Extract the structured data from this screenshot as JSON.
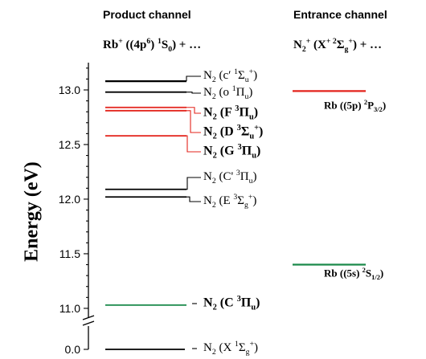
{
  "headers": {
    "product": "Product channel",
    "entrance": "Entrance channel",
    "product_sub": {
      "a": "Rb",
      "sup1": "+",
      "b": " ((4p",
      "sup2": "6",
      "c": ") ",
      "sup3": "1",
      "d": "S",
      "sub1": "0",
      "e": ") + …"
    },
    "entrance_sub": {
      "a": "N",
      "sub1": "2",
      "sup1": "+",
      "b": " (X",
      "sup2": "+ 2",
      "c": "Σ",
      "sub2": "g",
      "sup3": "+",
      "d": ") + …"
    }
  },
  "y_axis": {
    "label": "Energy (eV)",
    "ticks": [
      "0.0",
      "11.0",
      "11.5",
      "12.0",
      "12.5",
      "13.0"
    ]
  },
  "colors": {
    "black": "#000000",
    "red": "#e3231b",
    "green": "#1a8a4a"
  },
  "product_levels": [
    {
      "id": "c-prime",
      "energy": 13.08,
      "color": "black",
      "bold": false,
      "label": {
        "pre": "N",
        "sub": "2",
        "mid": " (c′ ",
        "sup": "1",
        "term": "Σ",
        "tsub": "u",
        "tsup": "+",
        "post": ")"
      }
    },
    {
      "id": "o",
      "energy": 12.98,
      "color": "black",
      "bold": false,
      "label": {
        "pre": "N",
        "sub": "2",
        "mid": " (o ",
        "sup": "1",
        "term": "Π",
        "tsub": "u",
        "tsup": "",
        "post": ")"
      }
    },
    {
      "id": "F",
      "energy": 12.84,
      "color": "red",
      "bold": true,
      "label": {
        "pre": "N",
        "sub": "2",
        "mid": " (F ",
        "sup": "3",
        "term": "Π",
        "tsub": "u",
        "tsup": "",
        "post": ")"
      }
    },
    {
      "id": "D",
      "energy": 12.81,
      "color": "red",
      "bold": true,
      "label": {
        "pre": "N",
        "sub": "2",
        "mid": " (D ",
        "sup": "3",
        "term": "Σ",
        "tsub": "u",
        "tsup": "+",
        "post": ")"
      }
    },
    {
      "id": "G",
      "energy": 12.58,
      "color": "red",
      "bold": true,
      "label": {
        "pre": "N",
        "sub": "2",
        "mid": " (G ",
        "sup": "3",
        "term": "Π",
        "tsub": "u",
        "tsup": "",
        "post": ")"
      }
    },
    {
      "id": "C-prime",
      "energy": 12.09,
      "color": "black",
      "bold": false,
      "label": {
        "pre": "N",
        "sub": "2",
        "mid": " (C' ",
        "sup": "3",
        "term": "Π",
        "tsub": "u",
        "tsup": "",
        "post": ")"
      }
    },
    {
      "id": "E",
      "energy": 12.02,
      "color": "black",
      "bold": false,
      "label": {
        "pre": "N",
        "sub": "2",
        "mid": " (E ",
        "sup": "3",
        "term": "Σ",
        "tsub": "g",
        "tsup": "+",
        "post": ")"
      }
    },
    {
      "id": "C",
      "energy": 11.03,
      "color": "green",
      "bold": true,
      "label": {
        "pre": "N",
        "sub": "2",
        "mid": " (C ",
        "sup": "3",
        "term": "Π",
        "tsub": "u",
        "tsup": "",
        "post": ")"
      }
    },
    {
      "id": "X",
      "energy": 0.0,
      "color": "black",
      "bold": false,
      "label": {
        "pre": "N",
        "sub": "2",
        "mid": " (X ",
        "sup": "1",
        "term": "Σ",
        "tsub": "g",
        "tsup": "+",
        "post": ")"
      }
    }
  ],
  "entrance_levels": [
    {
      "id": "5p",
      "energy": 12.99,
      "color": "red",
      "label": {
        "pre": "Rb ((5p) ",
        "sup": "2",
        "term": "P",
        "tsub": "3/2",
        "post": ")"
      }
    },
    {
      "id": "5s",
      "energy": 11.4,
      "color": "green",
      "label": {
        "pre": "Rb ((5s) ",
        "sup": "2",
        "term": "S",
        "tsub": "1/2",
        "post": ")"
      }
    }
  ]
}
